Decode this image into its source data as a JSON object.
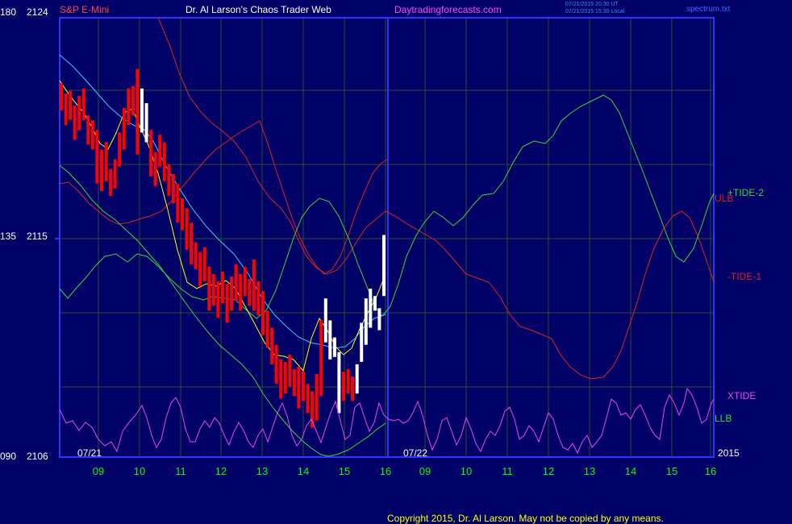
{
  "header": {
    "symbol": "S&P E-Mini",
    "title": "Dr. Al Larson's Chaos Trader Web",
    "site": "Daytradingforecasts.com",
    "stamp_line1": "07/21/2015 20:30 UT",
    "stamp_line2": "07/21/2015 15:30 Local",
    "filename": "spectrum.txt"
  },
  "footer": {
    "copyright": "Copyright 2015, Dr. Al Larson. May not be copied by any means."
  },
  "colors": {
    "background": "#000066",
    "frame": "#3333ff",
    "grid": "#2d4f2d",
    "price_bar": "#ff0000",
    "price_bar_current": "#ffffff",
    "moving_avg_fast": "#ffff00",
    "moving_avg_slow": "#33ccff",
    "tide_plus": "#33dd33",
    "tide_minus": "#dd2222",
    "xtide": "#ee44ee",
    "title_color": "#ffffff",
    "site_color": "#ff44ff",
    "symbol_color": "#ff4444",
    "axis_label": "#ffffff",
    "time_label": "#00ff00"
  },
  "chart_data": {
    "type": "line",
    "title": "S&P E-Mini",
    "y_axis_left_ticks": [
      {
        "deg": "180",
        "price": "2124"
      },
      {
        "deg": "135",
        "price": "2115"
      },
      {
        "deg": "090",
        "price": "2106"
      }
    ],
    "ylim": [
      2106,
      2124
    ],
    "x_hour_ticks": [
      "09",
      "10",
      "11",
      "12",
      "13",
      "14",
      "15",
      "16",
      "09",
      "10",
      "11",
      "12",
      "13",
      "14",
      "15",
      "16"
    ],
    "date_labels": [
      "07/21",
      "07/22"
    ],
    "year_label": "2015",
    "series_labels": {
      "tide_plus": "+TIDE-2",
      "ulb": "ULB",
      "tide_minus": "-TIDE-1",
      "xtide": "XTIDE",
      "llb": "LLB"
    },
    "price_bars": [
      [
        2120.2,
        2121.3,
        "r"
      ],
      [
        2119.6,
        2120.9,
        "r"
      ],
      [
        2119.8,
        2121.0,
        "r"
      ],
      [
        2119.0,
        2120.4,
        "r"
      ],
      [
        2119.4,
        2120.8,
        "r"
      ],
      [
        2119.8,
        2121.1,
        "r"
      ],
      [
        2118.8,
        2120.0,
        "r"
      ],
      [
        2118.6,
        2119.8,
        "r"
      ],
      [
        2117.2,
        2119.4,
        "r"
      ],
      [
        2116.9,
        2118.6,
        "r"
      ],
      [
        2117.3,
        2118.9,
        "r"
      ],
      [
        2116.7,
        2117.8,
        "r"
      ],
      [
        2117.0,
        2118.2,
        "r"
      ],
      [
        2117.9,
        2119.3,
        "r"
      ],
      [
        2118.6,
        2120.3,
        "r"
      ],
      [
        2119.6,
        2121.1,
        "r"
      ],
      [
        2120.0,
        2121.2,
        "r"
      ],
      [
        2118.4,
        2121.9,
        "r"
      ],
      [
        2119.3,
        2121.1,
        "w"
      ],
      [
        2118.9,
        2120.5,
        "w"
      ],
      [
        2117.5,
        2119.4,
        "r"
      ],
      [
        2117.1,
        2118.5,
        "r"
      ],
      [
        2117.9,
        2119.2,
        "r"
      ],
      [
        2117.3,
        2118.9,
        "r"
      ],
      [
        2116.7,
        2118.0,
        "r"
      ],
      [
        2116.4,
        2117.6,
        "r"
      ],
      [
        2115.6,
        2117.2,
        "r"
      ],
      [
        2115.3,
        2116.6,
        "r"
      ],
      [
        2114.5,
        2116.2,
        "r"
      ],
      [
        2113.9,
        2115.6,
        "r"
      ],
      [
        2113.7,
        2114.8,
        "r"
      ],
      [
        2113.0,
        2114.4,
        "r"
      ],
      [
        2113.2,
        2114.6,
        "r"
      ],
      [
        2112.0,
        2113.8,
        "r"
      ],
      [
        2112.2,
        2113.5,
        "r"
      ],
      [
        2111.7,
        2113.2,
        "r"
      ],
      [
        2112.3,
        2113.6,
        "r"
      ],
      [
        2111.5,
        2113.1,
        "r"
      ],
      [
        2112.0,
        2113.4,
        "r"
      ],
      [
        2112.4,
        2113.9,
        "r"
      ],
      [
        2112.0,
        2113.5,
        "r"
      ],
      [
        2112.6,
        2113.8,
        "r"
      ],
      [
        2112.2,
        2113.3,
        "r"
      ],
      [
        2112.0,
        2114.1,
        "r"
      ],
      [
        2111.8,
        2113.2,
        "r"
      ],
      [
        2111.0,
        2112.8,
        "r"
      ],
      [
        2110.5,
        2112.0,
        "r"
      ],
      [
        2109.8,
        2111.3,
        "r"
      ],
      [
        2109.0,
        2110.6,
        "r"
      ],
      [
        2108.4,
        2110.0,
        "r"
      ],
      [
        2108.6,
        2109.9,
        "r"
      ],
      [
        2108.9,
        2110.2,
        "r"
      ],
      [
        2108.5,
        2109.6,
        "r"
      ],
      [
        2108.0,
        2109.7,
        "r"
      ],
      [
        2108.3,
        2109.5,
        "r"
      ],
      [
        2107.8,
        2109.0,
        "r"
      ],
      [
        2107.2,
        2108.7,
        "r"
      ],
      [
        2107.5,
        2109.4,
        "r"
      ],
      [
        2108.5,
        2111.6,
        "r"
      ],
      [
        2110.7,
        2112.5,
        "w"
      ],
      [
        2110.0,
        2111.6,
        "w"
      ],
      [
        2110.1,
        2110.9,
        "w"
      ],
      [
        2107.8,
        2110.3,
        "w"
      ],
      [
        2108.3,
        2109.5,
        "r"
      ],
      [
        2108.6,
        2109.6,
        "r"
      ],
      [
        2108.3,
        2109.3,
        "r"
      ],
      [
        2108.6,
        2109.8,
        "w"
      ],
      [
        2109.9,
        2111.5,
        "w"
      ],
      [
        2110.6,
        2112.5,
        "w"
      ],
      [
        2111.3,
        2112.9,
        "w"
      ],
      [
        2112.0,
        2112.6,
        "w"
      ],
      [
        2111.2,
        2112.1,
        "w"
      ],
      [
        2112.6,
        2115.1,
        "w"
      ]
    ]
  }
}
